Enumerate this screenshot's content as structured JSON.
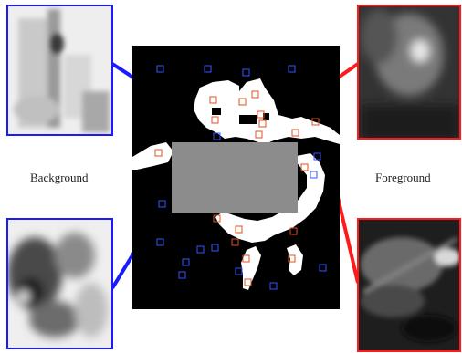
{
  "labels": {
    "left": "Background",
    "right": "Foreground"
  },
  "colors": {
    "background_accent": "#1a1aff",
    "foreground_accent": "#ff1a1a",
    "mask_black": "#000000",
    "mask_white": "#ffffff",
    "occluder_gray": "#8c8c8c"
  }
}
